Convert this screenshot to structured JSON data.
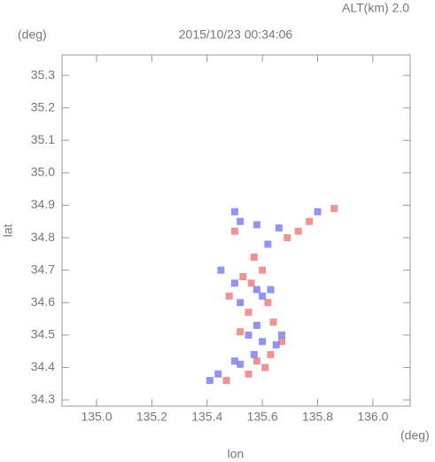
{
  "chart_data": {
    "type": "scatter",
    "title": "2015/10/23 00:34:06",
    "annotation": "ALT(km) 2.0",
    "y_unit": "(deg)",
    "x_unit": "(deg)",
    "x_label": "lon",
    "y_label": "lat",
    "xlim": [
      134.875,
      136.135
    ],
    "ylim": [
      34.281,
      35.363
    ],
    "xticks": [
      {
        "value": 135.0,
        "label": "135.0"
      },
      135.2,
      135.4,
      135.6,
      135.8,
      {
        "value": 136.0,
        "label": "136.0"
      }
    ],
    "yticks": [
      34.3,
      34.4,
      34.5,
      34.6,
      34.7,
      34.8,
      34.9,
      {
        "value": 35.0,
        "label": "35.0"
      },
      35.1,
      35.2,
      35.3
    ],
    "series": [
      {
        "color": "#f08080",
        "x": [
          135.53,
          135.56,
          135.6,
          135.48,
          135.55,
          135.62,
          135.67,
          135.63,
          135.58,
          135.61,
          135.55,
          135.47,
          135.69,
          135.73,
          135.77,
          135.86,
          135.5,
          135.57,
          135.52,
          135.64
        ],
        "values": [
          34.68,
          34.66,
          34.7,
          34.62,
          34.57,
          34.6,
          34.48,
          34.44,
          34.42,
          34.4,
          34.38,
          34.36,
          34.8,
          34.82,
          34.85,
          34.89,
          34.82,
          34.74,
          34.51,
          34.54
        ]
      },
      {
        "color": "#8080f0",
        "x": [
          135.5,
          135.52,
          135.58,
          135.62,
          135.66,
          135.58,
          135.52,
          135.6,
          135.55,
          135.6,
          135.65,
          135.57,
          135.52,
          135.5,
          135.44,
          135.41,
          135.63,
          135.45,
          135.8,
          135.67,
          135.58,
          135.5
        ],
        "values": [
          34.88,
          34.85,
          34.84,
          34.78,
          34.83,
          34.64,
          34.6,
          34.62,
          34.5,
          34.48,
          34.47,
          34.44,
          34.41,
          34.42,
          34.38,
          34.36,
          34.64,
          34.7,
          34.88,
          34.5,
          34.53,
          34.66
        ]
      }
    ]
  }
}
